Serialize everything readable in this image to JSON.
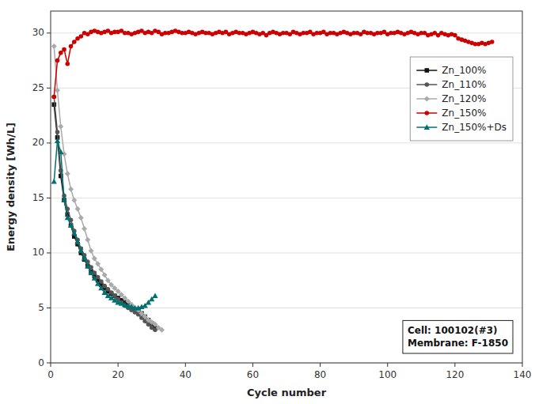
{
  "chart_data": {
    "type": "line",
    "xlabel": "Cycle number",
    "ylabel": "Energy density [Wh/L]",
    "xlim": [
      0,
      140
    ],
    "ylim": [
      0,
      32
    ],
    "xticks": [
      0,
      20,
      40,
      60,
      80,
      100,
      120,
      140
    ],
    "yticks": [
      0,
      5,
      10,
      15,
      20,
      25,
      30
    ],
    "grid": true,
    "legend": "upper right",
    "annotation": "Cell: 100102(#3)\nMembrane: F-1850",
    "series": [
      {
        "name": "Zn_100%",
        "color": "#111111",
        "marker": "square",
        "x": [
          1,
          2,
          3,
          4,
          5,
          6,
          7,
          8,
          9,
          10,
          11,
          12,
          13,
          14,
          15,
          16,
          17,
          18,
          19,
          20,
          21,
          22,
          23,
          24,
          25,
          26,
          27,
          28,
          29,
          30,
          31
        ],
        "values": [
          23.5,
          20.5,
          17.0,
          14.8,
          13.5,
          12.5,
          11.5,
          10.8,
          10.0,
          9.4,
          8.8,
          8.3,
          7.9,
          7.5,
          7.1,
          6.8,
          6.5,
          6.3,
          6.1,
          5.9,
          5.7,
          5.5,
          5.3,
          5.1,
          4.9,
          4.7,
          4.5,
          4.2,
          3.9,
          3.6,
          3.2
        ]
      },
      {
        "name": "Zn_110%",
        "color": "#555555",
        "marker": "circle",
        "x": [
          1,
          2,
          3,
          4,
          5,
          6,
          7,
          8,
          9,
          10,
          11,
          12,
          13,
          14,
          15,
          16,
          17,
          18,
          19,
          20,
          21,
          22,
          23,
          24,
          25,
          26,
          27,
          28,
          29,
          30,
          31
        ],
        "values": [
          24.2,
          21.0,
          17.5,
          15.2,
          14.0,
          13.0,
          12.0,
          11.2,
          10.4,
          9.8,
          9.2,
          8.7,
          8.2,
          7.8,
          7.4,
          7.0,
          6.7,
          6.4,
          6.1,
          5.8,
          5.5,
          5.2,
          5.0,
          4.8,
          4.6,
          4.4,
          4.1,
          3.8,
          3.5,
          3.2,
          3.0
        ]
      },
      {
        "name": "Zn_120%",
        "color": "#aaaaaa",
        "marker": "diamond",
        "x": [
          1,
          2,
          3,
          4,
          5,
          6,
          7,
          8,
          9,
          10,
          11,
          12,
          13,
          14,
          15,
          16,
          17,
          18,
          19,
          20,
          21,
          22,
          23,
          24,
          25,
          26,
          27,
          28,
          29,
          30,
          31,
          32,
          33
        ],
        "values": [
          28.8,
          24.8,
          21.5,
          19.0,
          17.2,
          15.8,
          14.8,
          14.0,
          13.2,
          12.2,
          11.2,
          10.2,
          9.5,
          9.0,
          8.5,
          8.0,
          7.5,
          7.1,
          6.8,
          6.5,
          6.2,
          5.9,
          5.6,
          5.3,
          5.0,
          4.8,
          4.5,
          4.2,
          3.9,
          3.7,
          3.5,
          3.2,
          3.0
        ]
      },
      {
        "name": "Zn_150%",
        "color": "#cc0000",
        "marker": "circle",
        "x": [
          1,
          2,
          3,
          4,
          5,
          6,
          7,
          8,
          9,
          10,
          11,
          12,
          13,
          14,
          15,
          16,
          17,
          18,
          19,
          20,
          21,
          22,
          23,
          24,
          25,
          26,
          27,
          28,
          29,
          30,
          31,
          32,
          33,
          34,
          35,
          36,
          37,
          38,
          39,
          40,
          41,
          42,
          43,
          44,
          45,
          46,
          47,
          48,
          49,
          50,
          51,
          52,
          53,
          54,
          55,
          56,
          57,
          58,
          59,
          60,
          61,
          62,
          63,
          64,
          65,
          66,
          67,
          68,
          69,
          70,
          71,
          72,
          73,
          74,
          75,
          76,
          77,
          78,
          79,
          80,
          81,
          82,
          83,
          84,
          85,
          86,
          87,
          88,
          89,
          90,
          91,
          92,
          93,
          94,
          95,
          96,
          97,
          98,
          99,
          100,
          101,
          102,
          103,
          104,
          105,
          106,
          107,
          108,
          109,
          110,
          111,
          112,
          113,
          114,
          115,
          116,
          117,
          118,
          119,
          120,
          121,
          122,
          123,
          124,
          125,
          126,
          127,
          128,
          129,
          130,
          131
        ],
        "values": [
          24.2,
          27.5,
          28.2,
          28.5,
          27.2,
          28.8,
          29.2,
          29.5,
          29.7,
          30.0,
          29.9,
          30.1,
          30.2,
          30.1,
          30.0,
          30.1,
          30.2,
          30.0,
          30.1,
          30.1,
          30.2,
          30.0,
          30.0,
          29.9,
          30.0,
          30.1,
          30.2,
          30.0,
          30.1,
          30.0,
          30.2,
          30.1,
          29.9,
          30.0,
          30.0,
          30.1,
          30.2,
          30.1,
          30.0,
          30.0,
          30.1,
          30.0,
          29.9,
          30.0,
          30.1,
          30.0,
          30.0,
          29.9,
          30.0,
          30.1,
          30.0,
          30.1,
          29.9,
          30.0,
          30.1,
          30.0,
          30.0,
          29.9,
          30.0,
          30.1,
          30.0,
          29.9,
          30.0,
          29.8,
          30.0,
          30.1,
          30.0,
          29.9,
          30.0,
          30.0,
          29.9,
          30.1,
          30.0,
          29.9,
          30.0,
          30.0,
          30.1,
          29.9,
          30.0,
          30.0,
          30.1,
          29.9,
          30.0,
          30.0,
          29.9,
          30.0,
          30.1,
          30.0,
          29.9,
          30.0,
          30.0,
          29.9,
          30.1,
          30.0,
          30.0,
          29.9,
          30.0,
          30.0,
          30.1,
          29.9,
          30.0,
          30.0,
          30.1,
          30.0,
          29.9,
          30.0,
          30.1,
          30.0,
          29.9,
          30.0,
          30.0,
          29.8,
          29.9,
          30.0,
          29.8,
          30.0,
          29.9,
          29.8,
          29.9,
          29.8,
          29.5,
          29.4,
          29.3,
          29.2,
          29.1,
          29.0,
          29.0,
          29.1,
          29.0,
          29.1,
          29.2
        ]
      },
      {
        "name": "Zn_150%+Ds",
        "color": "#007070",
        "marker": "triangle",
        "x": [
          1,
          2,
          3,
          4,
          5,
          6,
          7,
          8,
          9,
          10,
          11,
          12,
          13,
          14,
          15,
          16,
          17,
          18,
          19,
          20,
          21,
          22,
          23,
          24,
          25,
          26,
          27,
          28,
          29,
          30,
          31
        ],
        "values": [
          16.5,
          20.2,
          19.2,
          14.8,
          13.2,
          12.5,
          11.8,
          11.0,
          10.2,
          9.5,
          8.8,
          8.2,
          7.7,
          7.2,
          6.8,
          6.4,
          6.1,
          5.9,
          5.7,
          5.5,
          5.4,
          5.3,
          5.2,
          5.1,
          5.0,
          5.0,
          5.1,
          5.2,
          5.5,
          5.8,
          6.1
        ]
      }
    ]
  }
}
